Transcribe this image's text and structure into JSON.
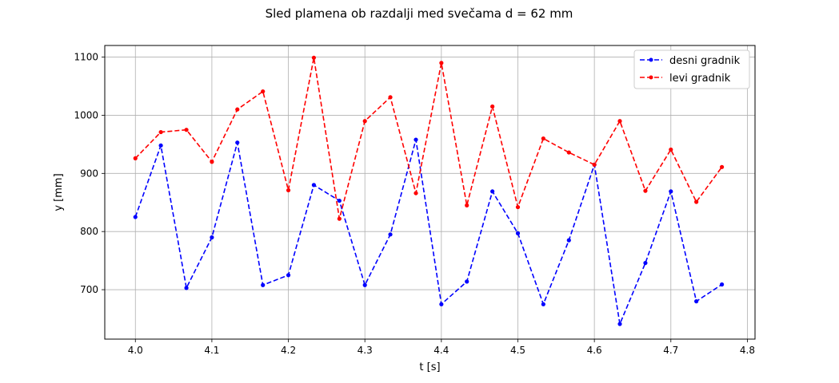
{
  "chart_data": {
    "type": "line",
    "title": "Sled plamena ob razdalji med svečama d = 62 mm",
    "xlabel": "t [s]",
    "ylabel": "y [mm]",
    "xlim": [
      3.96,
      4.81
    ],
    "ylim": [
      615,
      1120
    ],
    "xticks": [
      "4.0",
      "4.1",
      "4.2",
      "4.3",
      "4.4",
      "4.5",
      "4.6",
      "4.7",
      "4.8"
    ],
    "yticks": [
      "700",
      "800",
      "900",
      "1000",
      "1100"
    ],
    "grid": true,
    "legend_position": "top-right",
    "x": [
      4.0,
      4.0333,
      4.0667,
      4.1,
      4.1333,
      4.1667,
      4.2,
      4.2333,
      4.2667,
      4.3,
      4.3333,
      4.3667,
      4.4,
      4.4333,
      4.4667,
      4.5,
      4.5333,
      4.5667,
      4.6,
      4.6333,
      4.6667,
      4.7,
      4.7333,
      4.7667
    ],
    "series": [
      {
        "name": "desni gradnik",
        "color": "#0000ff",
        "values": [
          825,
          948,
          703,
          790,
          953,
          708,
          725,
          880,
          853,
          708,
          795,
          958,
          675,
          714,
          869,
          797,
          675,
          785,
          915,
          641,
          746,
          869,
          680,
          709
        ]
      },
      {
        "name": "levi gradnik",
        "color": "#ff0000",
        "values": [
          926,
          971,
          975,
          920,
          1010,
          1041,
          871,
          1099,
          822,
          990,
          1031,
          866,
          1090,
          845,
          1015,
          842,
          960,
          936,
          915,
          990,
          870,
          941,
          851,
          911
        ]
      }
    ]
  }
}
